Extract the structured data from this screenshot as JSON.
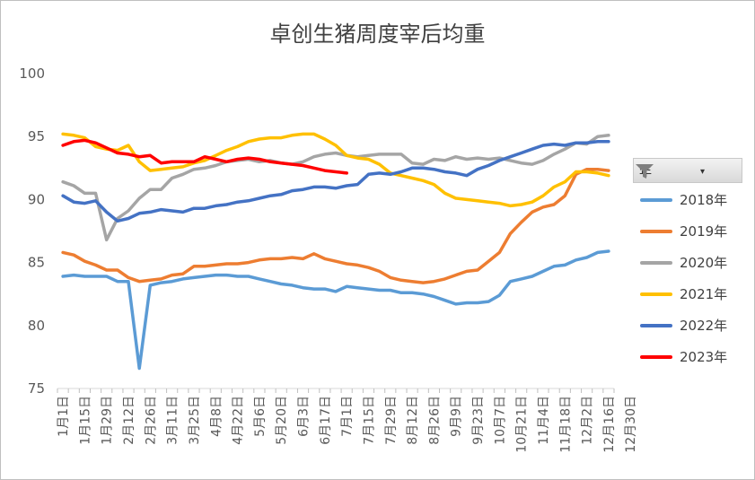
{
  "chart_data": {
    "type": "line",
    "title": "卓创生猪周度宰后均重",
    "ylim": [
      75,
      100
    ],
    "yticks": [
      "75",
      "80",
      "85",
      "90",
      "95",
      "100"
    ],
    "x_labels": [
      "1月1日",
      "1月15日",
      "1月29日",
      "2月12日",
      "2月26日",
      "3月11日",
      "3月25日",
      "4月8日",
      "4月22日",
      "5月6日",
      "5月20日",
      "6月3日",
      "6月17日",
      "7月1日",
      "7月15日",
      "7月29日",
      "8月12日",
      "8月26日",
      "9月9日",
      "9月23日",
      "10月7日",
      "10月21日",
      "11月4日",
      "11月18日",
      "12月2日",
      "12月16日",
      "12月30日"
    ],
    "legend_header": "年",
    "series": [
      {
        "name": "2018年",
        "color": "#5b9bd5",
        "values": [
          83.9,
          84.0,
          83.9,
          83.9,
          83.9,
          83.5,
          83.5,
          76.6,
          83.2,
          83.4,
          83.5,
          83.7,
          83.8,
          83.9,
          84.0,
          84.0,
          83.9,
          83.9,
          83.7,
          83.5,
          83.3,
          83.2,
          83.0,
          82.9,
          82.9,
          82.7,
          83.1,
          83.0,
          82.9,
          82.8,
          82.8,
          82.6,
          82.6,
          82.5,
          82.3,
          82.0,
          81.7,
          81.8,
          81.8,
          81.9,
          82.4,
          83.5,
          83.7,
          83.9,
          84.3,
          84.7,
          84.8,
          85.2,
          85.4,
          85.8,
          85.9
        ]
      },
      {
        "name": "2019年",
        "color": "#ed7d31",
        "values": [
          85.8,
          85.6,
          85.1,
          84.8,
          84.4,
          84.4,
          83.8,
          83.5,
          83.6,
          83.7,
          84.0,
          84.1,
          84.7,
          84.7,
          84.8,
          84.9,
          84.9,
          85.0,
          85.2,
          85.3,
          85.3,
          85.4,
          85.3,
          85.7,
          85.3,
          85.1,
          84.9,
          84.8,
          84.6,
          84.3,
          83.8,
          83.6,
          83.5,
          83.4,
          83.5,
          83.7,
          84.0,
          84.3,
          84.4,
          85.1,
          85.8,
          87.3,
          88.2,
          89.0,
          89.4,
          89.6,
          90.3,
          92.0,
          92.4,
          92.4,
          92.3
        ]
      },
      {
        "name": "2020年",
        "color": "#a5a5a5",
        "values": [
          91.4,
          91.1,
          90.5,
          90.5,
          86.8,
          88.5,
          89.1,
          90.1,
          90.8,
          90.8,
          91.7,
          92.0,
          92.4,
          92.5,
          92.7,
          93.0,
          93.1,
          93.2,
          93.0,
          93.1,
          92.9,
          92.8,
          93.0,
          93.4,
          93.6,
          93.7,
          93.5,
          93.4,
          93.5,
          93.6,
          93.6,
          93.6,
          92.9,
          92.8,
          93.2,
          93.1,
          93.4,
          93.2,
          93.3,
          93.2,
          93.3,
          93.1,
          92.9,
          92.8,
          93.1,
          93.6,
          94.0,
          94.5,
          94.4,
          95.0,
          95.1
        ]
      },
      {
        "name": "2021年",
        "color": "#ffc000",
        "values": [
          95.2,
          95.1,
          94.9,
          94.2,
          94.0,
          93.9,
          94.3,
          93.0,
          92.3,
          92.4,
          92.5,
          92.6,
          92.9,
          93.1,
          93.5,
          93.9,
          94.2,
          94.6,
          94.8,
          94.9,
          94.9,
          95.1,
          95.2,
          95.2,
          94.8,
          94.3,
          93.5,
          93.3,
          93.2,
          92.8,
          92.1,
          91.9,
          91.7,
          91.5,
          91.2,
          90.5,
          90.1,
          90.0,
          89.9,
          89.8,
          89.7,
          89.5,
          89.6,
          89.8,
          90.3,
          91.0,
          91.4,
          92.2,
          92.2,
          92.1,
          91.9
        ]
      },
      {
        "name": "2022年",
        "color": "#4472c4",
        "values": [
          90.3,
          89.8,
          89.7,
          89.9,
          89.0,
          88.3,
          88.5,
          88.9,
          89.0,
          89.2,
          89.1,
          89.0,
          89.3,
          89.3,
          89.5,
          89.6,
          89.8,
          89.9,
          90.1,
          90.3,
          90.4,
          90.7,
          90.8,
          91.0,
          91.0,
          90.9,
          91.1,
          91.2,
          92.0,
          92.1,
          92.0,
          92.2,
          92.5,
          92.5,
          92.4,
          92.2,
          92.1,
          91.9,
          92.4,
          92.7,
          93.1,
          93.4,
          93.7,
          94.0,
          94.3,
          94.4,
          94.3,
          94.5,
          94.5,
          94.6,
          94.6
        ]
      },
      {
        "name": "2023年",
        "color": "#ff0000",
        "values": [
          94.3,
          94.6,
          94.7,
          94.5,
          94.1,
          93.7,
          93.6,
          93.4,
          93.5,
          92.9,
          93.0,
          93.0,
          93.0,
          93.4,
          93.2,
          93.0,
          93.2,
          93.3,
          93.2,
          93.0,
          92.9,
          92.8,
          92.7,
          92.5,
          92.3,
          92.2,
          92.1
        ]
      }
    ]
  }
}
